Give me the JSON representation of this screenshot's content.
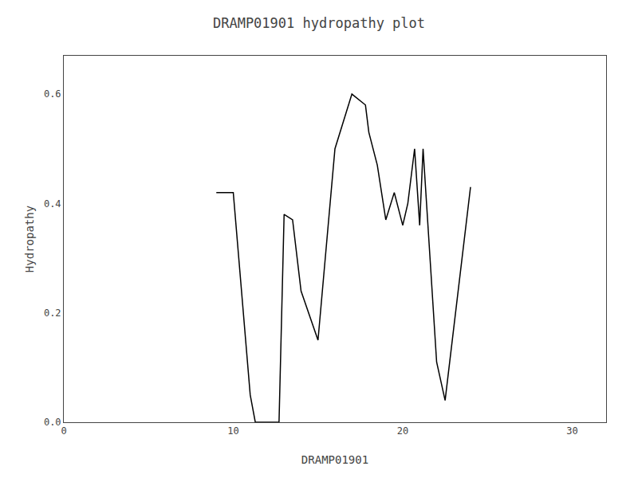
{
  "chart_data": {
    "type": "line",
    "title": "DRAMP01901 hydropathy plot",
    "xlabel": "DRAMP01901",
    "ylabel": "Hydropathy",
    "x": [
      9.0,
      10.0,
      11.0,
      11.3,
      12.0,
      12.7,
      13.0,
      13.5,
      14.0,
      15.0,
      16.0,
      17.0,
      17.8,
      18.0,
      18.5,
      19.0,
      19.5,
      20.0,
      20.3,
      20.7,
      21.0,
      21.2,
      22.0,
      22.5,
      24.0
    ],
    "values": [
      0.42,
      0.42,
      0.05,
      0.0,
      0.0,
      0.0,
      0.38,
      0.37,
      0.24,
      0.15,
      0.5,
      0.6,
      0.58,
      0.53,
      0.47,
      0.37,
      0.42,
      0.36,
      0.4,
      0.5,
      0.36,
      0.5,
      0.11,
      0.04,
      0.43
    ],
    "color": "#000000",
    "xlim": [
      0,
      32
    ],
    "ylim": [
      0.0,
      0.67
    ],
    "xticks": [
      0,
      10,
      20,
      30
    ],
    "yticks": [
      {
        "value": 0.0,
        "label": "0.0"
      },
      0.2,
      0.4,
      0.6
    ],
    "grid": false
  }
}
